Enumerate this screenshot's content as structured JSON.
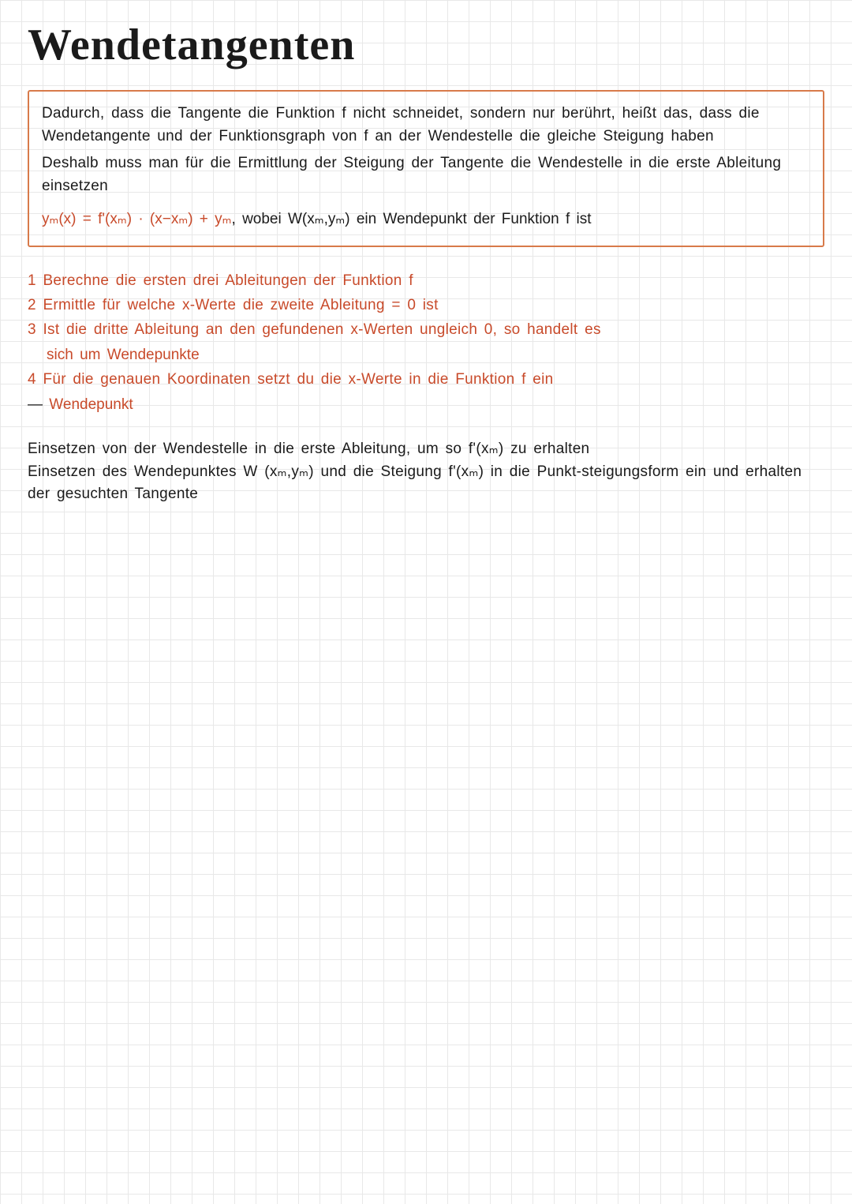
{
  "title": "Wendetangenten",
  "box": {
    "p1": "Dadurch, dass die Tangente die Funktion f nicht schneidet, sondern nur berührt, heißt das, dass die Wendetangente und der Funktionsgraph von f an der Wendestelle die gleiche Steigung haben",
    "p2": "Deshalb muss man für die Ermittlung der Steigung der Tangente die Wendestelle in die erste Ableitung einsetzen",
    "formula_red": "yₘ(x) = f'(xₘ) · (x−xₘ) + yₘ",
    "formula_black": ", wobei W(xₘ,yₘ) ein Wendepunkt der Funktion f ist"
  },
  "steps": {
    "s1": "1 Berechne die ersten drei Ableitungen der Funktion f",
    "s2": "2 Ermittle für welche x-Werte die zweite Ableitung = 0 ist",
    "s3": "3 Ist die dritte Ableitung an den gefundenen x-Werten ungleich 0, so handelt es",
    "s3b": "sich um Wendepunkte",
    "s4": "4 Für die genauen Koordinaten setzt du die x-Werte in die Funktion f ein",
    "arrow_black": "— ",
    "arrow_red": "Wendepunkt"
  },
  "final": {
    "p1": "Einsetzen von der Wendestelle in die erste Ableitung, um so f'(xₘ) zu erhalten",
    "p2": "Einsetzen des Wendepunktes W (xₘ,yₘ) und die Steigung f'(xₘ) in die Punkt-steigungsform ein und erhalten der gesuchten Tangente"
  },
  "colors": {
    "title": "#1a1a1a",
    "body": "#1a1a1a",
    "accent": "#c84a2a",
    "box_border": "#d87a4a",
    "grid": "#e8e8e8",
    "background": "#ffffff"
  }
}
